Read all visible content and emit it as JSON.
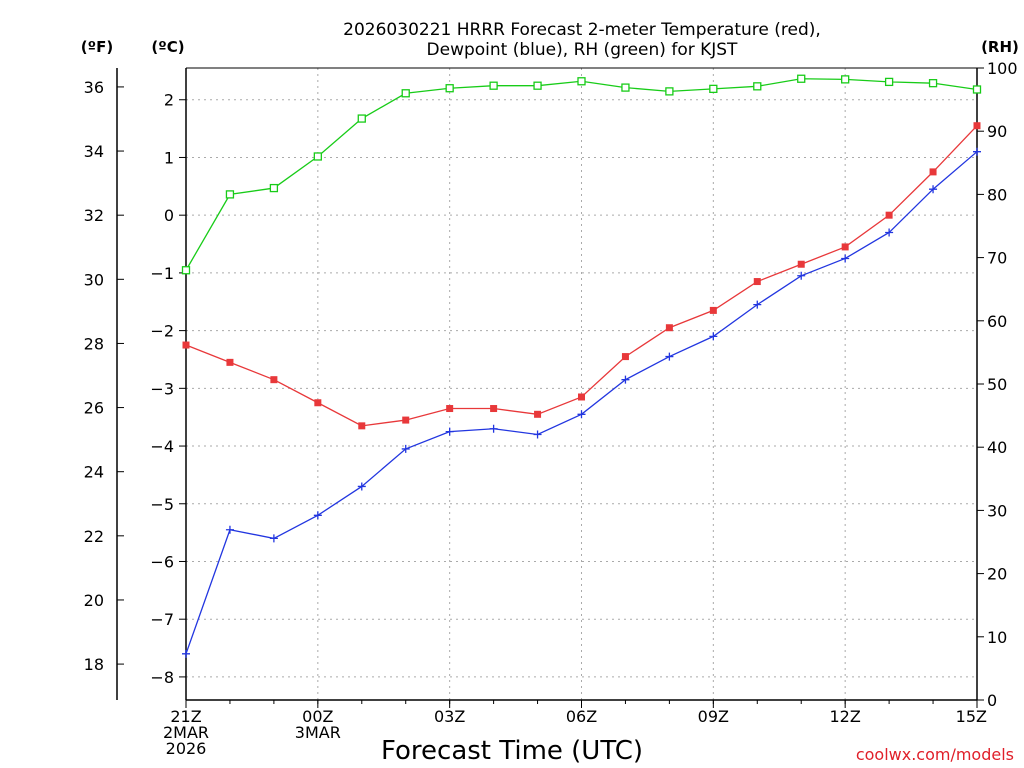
{
  "chart_data": {
    "type": "line",
    "title": "2026030221 HRRR Forecast 2-meter Temperature (red),",
    "subtitle": "Dewpoint (blue), RH (green) for KJST",
    "xlabel": "Forecast Time (UTC)",
    "credit": "coolwx.com/models",
    "x_hours": [
      0,
      1,
      2,
      3,
      4,
      5,
      6,
      7,
      8,
      9,
      10,
      11,
      12,
      13,
      14,
      15,
      16,
      17,
      18
    ],
    "x_ticks": [
      {
        "hour": 0,
        "lines": [
          "21Z",
          "2MAR",
          "2026"
        ]
      },
      {
        "hour": 3,
        "lines": [
          "00Z",
          "3MAR"
        ]
      },
      {
        "hour": 6,
        "lines": [
          "03Z"
        ]
      },
      {
        "hour": 9,
        "lines": [
          "06Z"
        ]
      },
      {
        "hour": 12,
        "lines": [
          "09Z"
        ]
      },
      {
        "hour": 15,
        "lines": [
          "12Z"
        ]
      },
      {
        "hour": 18,
        "lines": [
          "15Z"
        ]
      }
    ],
    "axes": {
      "celsius": {
        "label": "(ºC)",
        "range": [
          -8.4,
          2.55
        ],
        "ticks": [
          -8,
          -7,
          -6,
          -5,
          -4,
          -3,
          -2,
          -1,
          0,
          1,
          2
        ]
      },
      "fahrenheit": {
        "label": "(ºF)",
        "ticks": [
          18,
          20,
          22,
          24,
          26,
          28,
          30,
          32,
          34,
          36
        ]
      },
      "rh": {
        "label": "(RH)",
        "range": [
          0,
          100
        ],
        "ticks": [
          0,
          10,
          20,
          30,
          40,
          50,
          60,
          70,
          80,
          90,
          100
        ]
      }
    },
    "series": [
      {
        "name": "Temperature",
        "color": "#e8383a",
        "unit": "C",
        "marker": "filled-square",
        "values": [
          -2.25,
          -2.55,
          -2.85,
          -3.25,
          -3.65,
          -3.55,
          -3.35,
          -3.35,
          -3.45,
          -3.15,
          -2.45,
          -1.95,
          -1.65,
          -1.15,
          -0.85,
          -0.55,
          0.0,
          0.75,
          1.55
        ]
      },
      {
        "name": "Dewpoint",
        "color": "#2236e0",
        "unit": "C",
        "marker": "plus",
        "values": [
          -7.6,
          -5.45,
          -5.6,
          -5.2,
          -4.7,
          -4.05,
          -3.75,
          -3.7,
          -3.8,
          -3.45,
          -2.85,
          -2.45,
          -2.1,
          -1.55,
          -1.05,
          -0.75,
          -0.3,
          0.45,
          1.1
        ]
      },
      {
        "name": "RH",
        "color": "#18cc18",
        "unit": "%",
        "marker": "open-square",
        "values": [
          68,
          80,
          81,
          86,
          92,
          96,
          96.8,
          97.2,
          97.2,
          97.9,
          96.9,
          96.3,
          96.7,
          97.1,
          98.3,
          98.2,
          97.8,
          97.6,
          96.6
        ]
      }
    ]
  }
}
